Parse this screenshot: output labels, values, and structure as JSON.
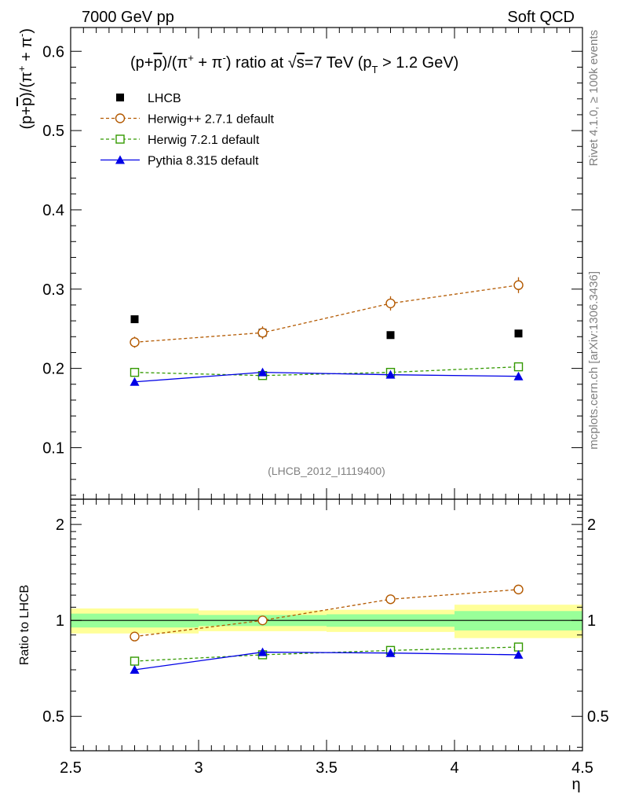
{
  "header": {
    "left": "7000 GeV pp",
    "right": "Soft QCD"
  },
  "side_text": {
    "rivet": "Rivet 4.1.0, ≥ 100k events",
    "mcplots": "mcplots.cern.ch [arXiv:1306.3436]"
  },
  "watermark": "(LHCB_2012_I1119400)",
  "colors": {
    "data": "#000000",
    "herwigpp": "#b35900",
    "herwig7": "#339900",
    "pythia": "#0000e6",
    "band_inner": "#99ff99",
    "band_outer": "#ffff99"
  },
  "chart_data": [
    {
      "type": "line",
      "panel": "main",
      "title_parts": {
        "prefix": "(p+",
        "pbar": "p",
        "mid": ")/(π",
        "sup1": "+",
        "mid2": " + π",
        "sup2": "-",
        "ratio": ") ratio at ",
        "sqrt": "√",
        "s": "s",
        "energy": "=7 TeV (p",
        "sub": "T",
        "cut": " > 1.2 GeV)"
      },
      "ylabel_parts": {
        "a": "(p+",
        "b": "p",
        "c": ")/(π",
        "d": "+",
        "e": " + π",
        "f": "-",
        "g": ")"
      },
      "xlim": [
        2.5,
        4.5
      ],
      "ylim": [
        0.035,
        0.63
      ],
      "yticks": [
        0.1,
        0.2,
        0.3,
        0.4,
        0.5,
        0.6
      ],
      "ytick_labels": [
        "0.1",
        "0.2",
        "0.3",
        "0.4",
        "0.5",
        "0.6"
      ],
      "x": [
        2.75,
        3.25,
        3.75,
        4.25
      ],
      "legend": [
        {
          "key": "data",
          "label": "LHCB",
          "marker": "square-filled",
          "dash": ""
        },
        {
          "key": "herwigpp",
          "label": "Herwig++ 2.7.1 default",
          "marker": "circle-open",
          "dash": "4,3"
        },
        {
          "key": "herwig7",
          "label": "Herwig 7.2.1 default",
          "marker": "square-open",
          "dash": "4,3"
        },
        {
          "key": "pythia",
          "label": "Pythia 8.315 default",
          "marker": "triangle-filled",
          "dash": ""
        }
      ],
      "series": [
        {
          "key": "data",
          "name": "LHCB",
          "values": [
            0.262,
            0.245,
            0.242,
            0.244
          ],
          "err": [
            0.002,
            0.002,
            0.002,
            0.002
          ]
        },
        {
          "key": "herwigpp",
          "name": "Herwig++ 2.7.1 default",
          "values": [
            0.233,
            0.245,
            0.282,
            0.305
          ],
          "err": [
            0.007,
            0.008,
            0.009,
            0.01
          ]
        },
        {
          "key": "herwig7",
          "name": "Herwig 7.2.1 default",
          "values": [
            0.195,
            0.191,
            0.195,
            0.202
          ],
          "err": [
            0.004,
            0.004,
            0.004,
            0.005
          ]
        },
        {
          "key": "pythia",
          "name": "Pythia 8.315 default",
          "values": [
            0.183,
            0.195,
            0.192,
            0.19
          ],
          "err": [
            0.003,
            0.004,
            0.004,
            0.004
          ]
        }
      ]
    },
    {
      "type": "line",
      "panel": "ratio",
      "ylabel": "Ratio to LHCB",
      "xlabel": "η",
      "xlim": [
        2.5,
        4.5
      ],
      "ylim": [
        0.39,
        2.4
      ],
      "log_y": true,
      "yticks": [
        0.5,
        1,
        2
      ],
      "ytick_labels": [
        "0.5",
        "1",
        "2"
      ],
      "xticks": [
        2.5,
        3,
        3.5,
        4,
        4.5
      ],
      "xtick_labels": [
        "2.5",
        "3",
        "3.5",
        "4",
        "4.5"
      ],
      "bins": [
        [
          2.5,
          3.0
        ],
        [
          3.0,
          3.5
        ],
        [
          3.5,
          4.0
        ],
        [
          4.0,
          4.5
        ]
      ],
      "band_inner": [
        0.05,
        0.04,
        0.045,
        0.07
      ],
      "band_outer": [
        0.09,
        0.075,
        0.08,
        0.12
      ],
      "x": [
        2.75,
        3.25,
        3.75,
        4.25
      ],
      "series": [
        {
          "key": "herwigpp",
          "values": [
            0.89,
            1.0,
            1.165,
            1.25
          ]
        },
        {
          "key": "herwig7",
          "values": [
            0.745,
            0.78,
            0.805,
            0.825
          ]
        },
        {
          "key": "pythia",
          "values": [
            0.7,
            0.795,
            0.79,
            0.78
          ]
        }
      ]
    }
  ]
}
